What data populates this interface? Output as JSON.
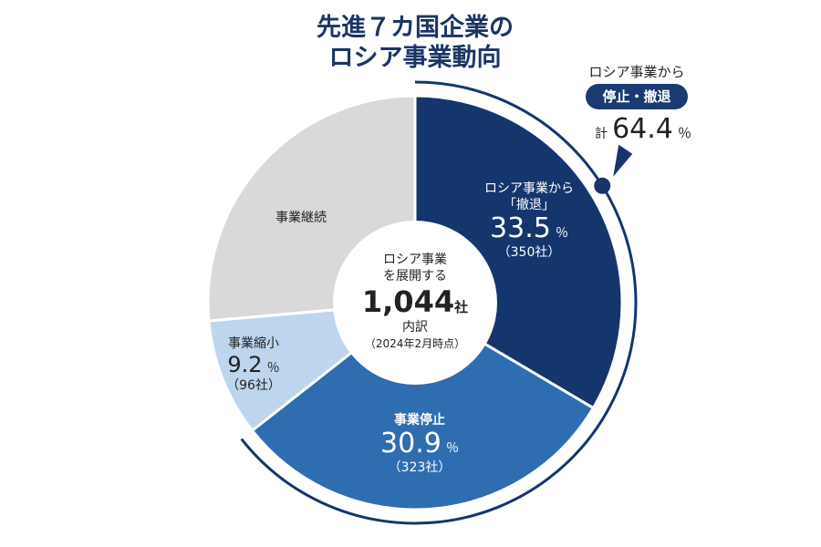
{
  "chart_data": {
    "type": "pie",
    "title": [
      "先進７カ国企業の",
      "ロシア事業動向"
    ],
    "center": {
      "line1": "ロシア事業",
      "line2": "を展開する",
      "total": "1,044",
      "total_unit": "社",
      "line3": "内訳",
      "note": "（2024年2月時点）"
    },
    "slices": [
      {
        "label_lines": [
          "ロシア事業から",
          "「撤退」"
        ],
        "value": 33.5,
        "value_text": "33.5",
        "unit": "％",
        "count": "（350社）",
        "color": "#15356d"
      },
      {
        "label_lines": [
          "事業停止"
        ],
        "value": 30.9,
        "value_text": "30.9",
        "unit": "％",
        "count": "（323社）",
        "color": "#2f6db1"
      },
      {
        "label_lines": [
          "事業縮小"
        ],
        "value": 9.2,
        "value_text": "9.2",
        "unit": "％",
        "count": "（96社）",
        "color": "#bdd6ee"
      },
      {
        "label_lines": [
          "事業継続"
        ],
        "value": 26.4,
        "color": "#d9d9d9"
      }
    ],
    "callout": {
      "line1": "ロシア事業から",
      "badge": "停止・撤退",
      "prefix": "計",
      "value": "64.4",
      "unit": "％",
      "covers_percent": 64.4,
      "color": "#15356d"
    }
  }
}
